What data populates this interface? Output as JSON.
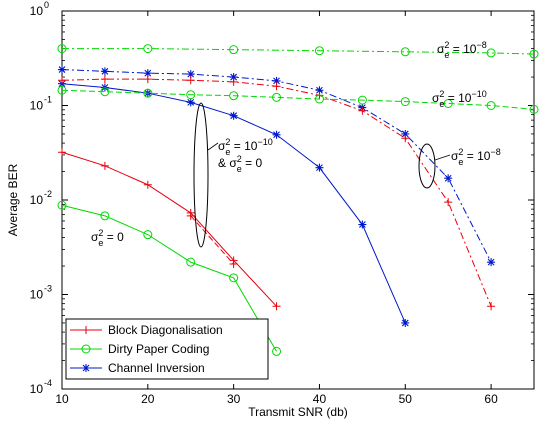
{
  "chart_data": {
    "type": "line",
    "title": "",
    "xlabel": "Transmit SNR (db)",
    "ylabel": "Average BER",
    "xlim": [
      10,
      65
    ],
    "ylim": [
      0.0001,
      1
    ],
    "yscale": "log",
    "grid": false,
    "legend_position": "bottom-left",
    "x_ticks": [
      10,
      20,
      30,
      40,
      50,
      60
    ],
    "y_ticks": [
      {
        "value": 0.0001,
        "base": "10",
        "exp": "-4"
      },
      {
        "value": 0.001,
        "base": "10",
        "exp": "-3"
      },
      {
        "value": 0.01,
        "base": "10",
        "exp": "-2"
      },
      {
        "value": 0.1,
        "base": "10",
        "exp": "-1"
      },
      {
        "value": 1,
        "base": "10",
        "exp": "0"
      }
    ],
    "series": [
      {
        "name": "Block Diagonalisation",
        "color": "#e8000b",
        "marker": "plus",
        "dash": "solid",
        "in_legend": true,
        "points": [
          [
            10,
            0.032
          ],
          [
            15,
            0.023
          ],
          [
            20,
            0.0145
          ],
          [
            25,
            0.0073
          ],
          [
            30,
            0.0023
          ],
          [
            35,
            0.00075
          ]
        ]
      },
      {
        "name": "Dirty Paper Coding",
        "color": "#00d800",
        "marker": "circle",
        "dash": "solid",
        "in_legend": true,
        "points": [
          [
            10,
            0.0088
          ],
          [
            15,
            0.0068
          ],
          [
            20,
            0.0043
          ],
          [
            25,
            0.0022
          ],
          [
            30,
            0.0015
          ],
          [
            35,
            0.00025
          ]
        ]
      },
      {
        "name": "Channel Inversion",
        "color": "#0018cc",
        "marker": "star",
        "dash": "solid",
        "in_legend": true,
        "points": [
          [
            10,
            0.17
          ],
          [
            15,
            0.155
          ],
          [
            20,
            0.135
          ],
          [
            25,
            0.108
          ],
          [
            30,
            0.078
          ],
          [
            35,
            0.049
          ],
          [
            40,
            0.022
          ],
          [
            45,
            0.0055
          ],
          [
            50,
            0.0005
          ]
        ]
      },
      {
        "name": "",
        "color": "#e8000b",
        "marker": "plus",
        "dash": "dashed",
        "in_legend": false,
        "points": [
          [
            25,
            0.0068
          ],
          [
            30,
            0.0021
          ]
        ]
      },
      {
        "name": "",
        "color": "#0018cc",
        "marker": "star",
        "dash": "dashdot",
        "in_legend": false,
        "points": [
          [
            10,
            0.24
          ],
          [
            15,
            0.23
          ],
          [
            20,
            0.22
          ],
          [
            25,
            0.215
          ],
          [
            30,
            0.2
          ],
          [
            35,
            0.182
          ],
          [
            40,
            0.145
          ],
          [
            45,
            0.095
          ],
          [
            50,
            0.05
          ],
          [
            55,
            0.017
          ],
          [
            60,
            0.0022
          ]
        ]
      },
      {
        "name": "",
        "color": "#e8000b",
        "marker": "plus",
        "dash": "dashdot",
        "in_legend": false,
        "points": [
          [
            10,
            0.185
          ],
          [
            15,
            0.19
          ],
          [
            20,
            0.19
          ],
          [
            25,
            0.185
          ],
          [
            30,
            0.178
          ],
          [
            35,
            0.16
          ],
          [
            40,
            0.128
          ],
          [
            45,
            0.088
          ],
          [
            50,
            0.045
          ],
          [
            55,
            0.0095
          ],
          [
            60,
            0.00075
          ]
        ]
      },
      {
        "name": "",
        "color": "#00d800",
        "marker": "circle",
        "dash": "dashdot",
        "in_legend": false,
        "points": [
          [
            10,
            0.4
          ],
          [
            20,
            0.4
          ],
          [
            30,
            0.39
          ],
          [
            40,
            0.38
          ],
          [
            50,
            0.37
          ],
          [
            60,
            0.36
          ],
          [
            65,
            0.35
          ]
        ]
      },
      {
        "name": "",
        "color": "#00d800",
        "marker": "circle",
        "dash": "dashed",
        "in_legend": false,
        "points": [
          [
            10,
            0.145
          ],
          [
            15,
            0.14
          ],
          [
            20,
            0.135
          ],
          [
            25,
            0.13
          ],
          [
            30,
            0.127
          ],
          [
            35,
            0.122
          ],
          [
            40,
            0.117
          ],
          [
            45,
            0.114
          ],
          [
            50,
            0.11
          ],
          [
            55,
            0.105
          ],
          [
            60,
            0.1
          ],
          [
            65,
            0.091
          ]
        ]
      }
    ],
    "annotations": [
      {
        "prefix": "σ",
        "sub": "e",
        "sup": "2",
        "rest": " = 10",
        "sup2": "−8",
        "line2": ""
      },
      {
        "prefix": "σ",
        "sub": "e",
        "sup": "2",
        "rest": " = 10",
        "sup2": "−10",
        "line2": ""
      },
      {
        "prefix": "σ",
        "sub": "e",
        "sup": "2",
        "rest": " = 10",
        "sup2": "−8",
        "line2": ""
      },
      {
        "prefix": "σ",
        "sub": "e",
        "sup": "2",
        "rest": " = 10",
        "sup2": "−10",
        "line2": "& σ",
        "line2_sub": "e",
        "line2_sup": "2",
        "line2_rest": " = 0"
      },
      {
        "prefix": "σ",
        "sub": "e",
        "sup": "2",
        "rest": " = 0",
        "sup2": "",
        "line2": ""
      }
    ]
  }
}
